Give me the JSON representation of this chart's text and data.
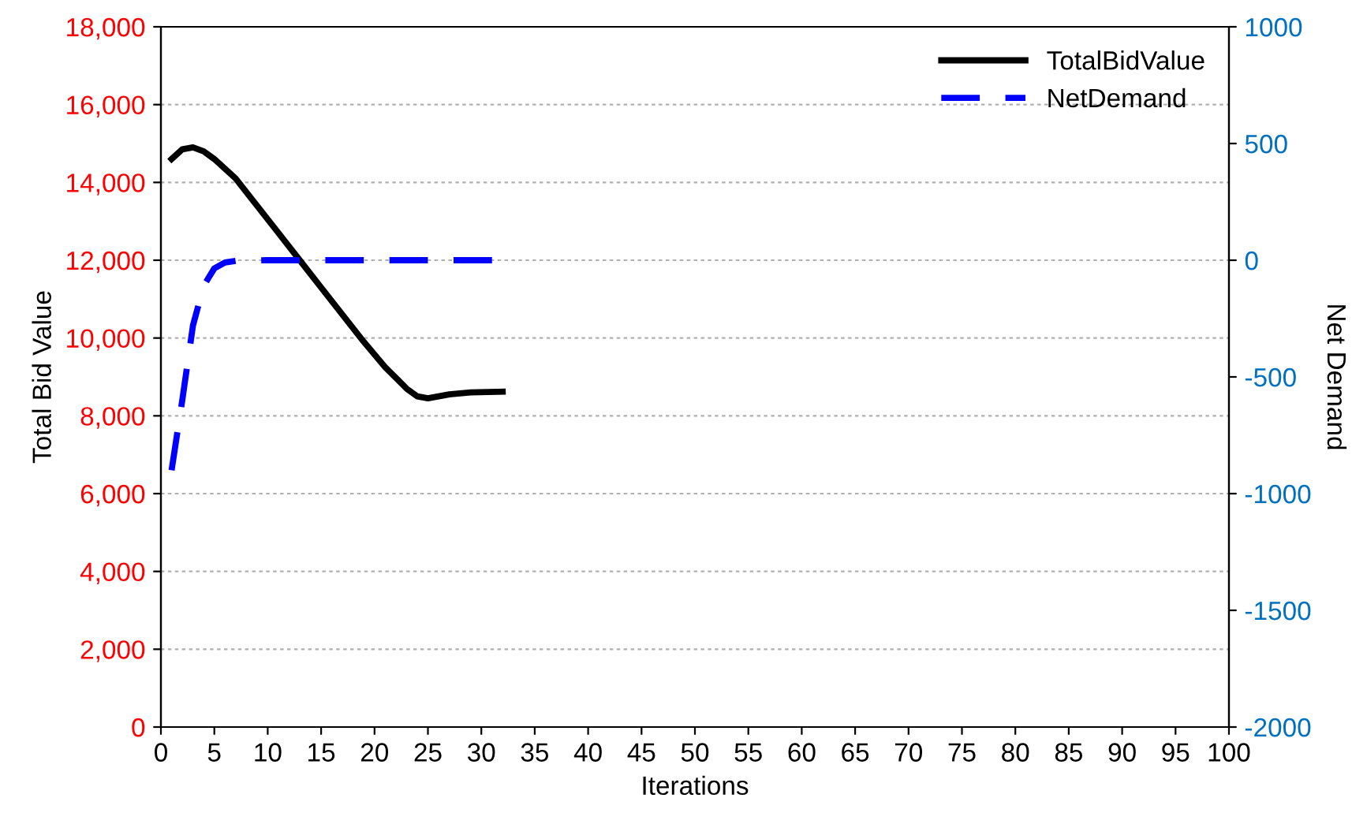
{
  "chart_data": {
    "type": "line",
    "xlabel": "Iterations",
    "ylabel": "Total Bid Value",
    "y2label": "Net Demand",
    "xlim": [
      0,
      100
    ],
    "xticks": [
      0,
      5,
      10,
      15,
      20,
      25,
      30,
      35,
      40,
      45,
      50,
      55,
      60,
      65,
      70,
      75,
      80,
      85,
      90,
      95,
      100
    ],
    "ylim": [
      0,
      18000
    ],
    "yticks": [
      {
        "value": 0,
        "label": "0"
      },
      {
        "value": 2000,
        "label": "2,000"
      },
      {
        "value": 4000,
        "label": "4,000"
      },
      {
        "value": 6000,
        "label": "6,000"
      },
      {
        "value": 8000,
        "label": "8,000"
      },
      {
        "value": 10000,
        "label": "10,000"
      },
      {
        "value": 12000,
        "label": "12,000"
      },
      {
        "value": 14000,
        "label": "14,000"
      },
      {
        "value": 16000,
        "label": "16,000"
      },
      {
        "value": 18000,
        "label": "18,000"
      }
    ],
    "y2lim": [
      -2000,
      1000
    ],
    "y2ticks": [
      -2000,
      -1500,
      -1000,
      -500,
      0,
      500,
      1000
    ],
    "grid": "y",
    "legend": "top right",
    "marker": "none",
    "series": [
      {
        "name": "TotalBidValue",
        "color": "#000000",
        "line_style": "solid",
        "x": [
          1,
          2,
          3,
          4,
          5,
          7,
          9,
          11,
          13,
          15,
          17,
          19,
          21,
          23,
          24,
          25,
          27,
          29,
          32
        ],
        "values": [
          14600,
          14850,
          14900,
          14800,
          14600,
          14100,
          13400,
          12700,
          12000,
          11300,
          10600,
          9900,
          9250,
          8700,
          8500,
          8450,
          8550,
          8600,
          8620
        ]
      },
      {
        "name": "NetDemand",
        "color": "#0000ff",
        "line_style": "dashed",
        "axis": "y2",
        "x": [
          1,
          2,
          3,
          4,
          5,
          6,
          7,
          10,
          15,
          20,
          25,
          31
        ],
        "values": [
          -900,
          -600,
          -280,
          -110,
          -35,
          -10,
          -3,
          0,
          0,
          0,
          0,
          0
        ]
      }
    ]
  }
}
